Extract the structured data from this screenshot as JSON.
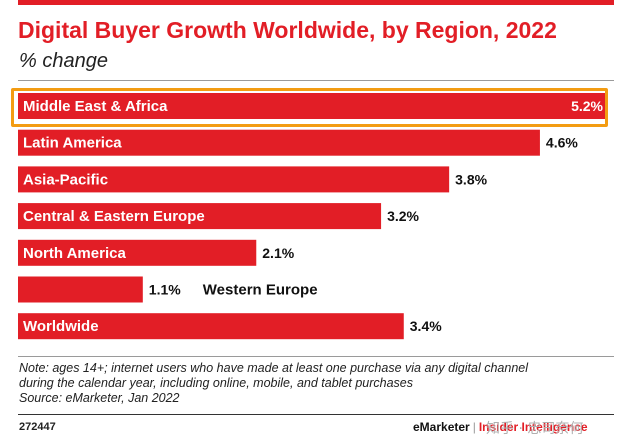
{
  "chart_data": {
    "type": "bar",
    "orientation": "horizontal",
    "title": "Digital Buyer Growth Worldwide, by Region, 2022",
    "subtitle": "% change",
    "categories": [
      "Middle East & Africa",
      "Latin America",
      "Asia-Pacific",
      "Central & Eastern Europe",
      "North America",
      "Western Europe",
      "Worldwide"
    ],
    "values": [
      5.2,
      4.6,
      3.8,
      3.2,
      2.1,
      1.1,
      3.4
    ],
    "value_labels": [
      "5.2%",
      "4.6%",
      "3.8%",
      "3.2%",
      "2.1%",
      "1.1%",
      "3.4%"
    ],
    "highlighted_category": "Middle East & Africa",
    "xlim": [
      0,
      5.2
    ],
    "grid": false,
    "legend": "none",
    "colors": {
      "bar": "#e21e26",
      "highlight": "#f39c12",
      "title": "#e21e26"
    }
  },
  "notes": [
    "Note: ages 14+; internet users who have made at least one purchase via any digital channel",
    "during the calendar year, including online, mobile, and tablet purchases",
    "Source: eMarketer, Jan 2022"
  ],
  "footer": {
    "chart_id": "272447",
    "brand": "eMarketer",
    "separator": "|",
    "brand2": "Insider Intelligence",
    "watermark": "知乎 · 忠司奈何"
  }
}
